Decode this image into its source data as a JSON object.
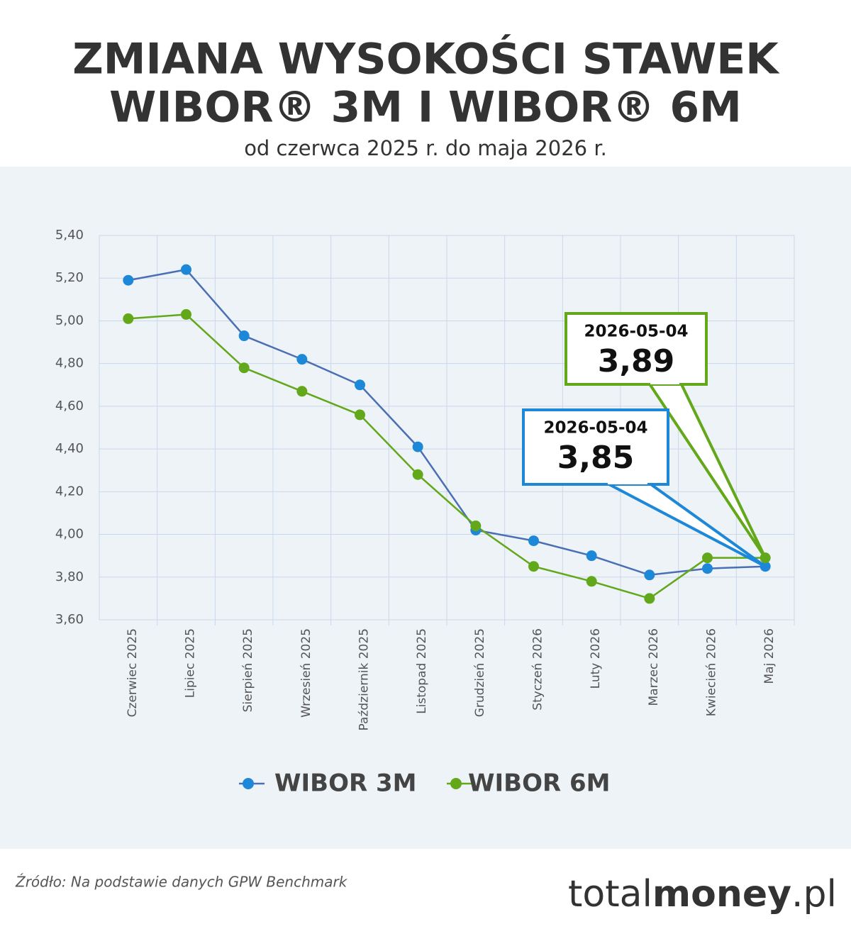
{
  "chart_data": {
    "type": "line",
    "title": [
      "ZMIANA WYSOKOŚCI STAWEK",
      "WIBOR® 3M I WIBOR® 6M"
    ],
    "subtitle": "od czerwca 2025 r. do maja 2026 r.",
    "categories": [
      "Czerwiec 2025",
      "Lipiec 2025",
      "Sierpień 2025",
      "Wrzesień 2025",
      "Październik 2025",
      "Listopad 2025",
      "Grudzień 2025",
      "Styczeń 2026",
      "Luty 2026",
      "Marzec 2026",
      "Kwiecień 2026",
      "Maj 2026"
    ],
    "series": [
      {
        "name": "WIBOR 3M",
        "color": "#1e88d8",
        "line_color": "#4a6fb5",
        "values": [
          5.19,
          5.24,
          4.93,
          4.82,
          4.7,
          4.41,
          4.02,
          3.97,
          3.9,
          3.81,
          3.84,
          3.85
        ]
      },
      {
        "name": "WIBOR 6M",
        "color": "#62a81a",
        "line_color": "#62a81a",
        "values": [
          5.01,
          5.03,
          4.78,
          4.67,
          4.56,
          4.28,
          4.04,
          3.85,
          3.78,
          3.7,
          3.89,
          3.89
        ]
      }
    ],
    "ylim": [
      3.6,
      5.4
    ],
    "yticks": [
      {
        "value": 3.6,
        "label": "3,60"
      },
      {
        "value": 3.8,
        "label": "3,80"
      },
      {
        "value": 4.0,
        "label": "4,00"
      },
      {
        "value": 4.2,
        "label": "4,20"
      },
      {
        "value": 4.4,
        "label": "4,40"
      },
      {
        "value": 4.6,
        "label": "4,60"
      },
      {
        "value": 4.8,
        "label": "4,80"
      },
      {
        "value": 5.0,
        "label": "5,00"
      },
      {
        "value": 5.2,
        "label": "5,20"
      },
      {
        "value": 5.4,
        "label": "5,40"
      }
    ],
    "grid": true,
    "legend": "bottom",
    "annotations": [
      {
        "series": 1,
        "text": "2026-05-04",
        "value": 3.89,
        "label": "3,89"
      },
      {
        "series": 0,
        "text": "2026-05-04",
        "value": 3.85,
        "label": "3,85"
      }
    ],
    "source": "Źródło: Na podstawie danych GPW Benchmark",
    "brand": [
      "total",
      "money",
      ".pl"
    ]
  }
}
